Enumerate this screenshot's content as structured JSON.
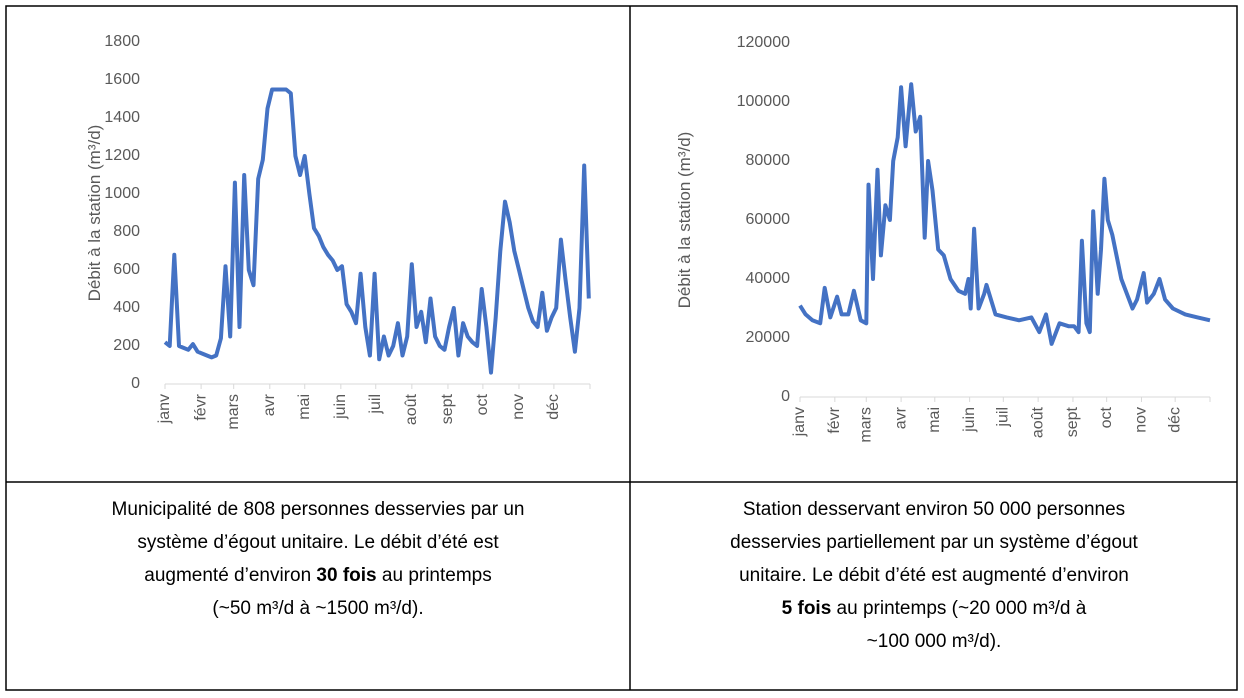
{
  "chart_data": [
    {
      "type": "line",
      "y_label": "Débit à la station (m³/d)",
      "color": "#4472c4",
      "xlim": [
        0,
        365
      ],
      "ylim": [
        0,
        1800
      ],
      "yticks": [
        0,
        200,
        400,
        600,
        800,
        1000,
        1200,
        1400,
        1600,
        1800
      ],
      "grid": false,
      "xticks": [
        {
          "value": 0,
          "label": "janv"
        },
        {
          "value": 31,
          "label": "févr"
        },
        {
          "value": 59,
          "label": "mars"
        },
        {
          "value": 90,
          "label": "avr"
        },
        {
          "value": 120,
          "label": "mai"
        },
        {
          "value": 151,
          "label": "juin"
        },
        {
          "value": 181,
          "label": "juil"
        },
        {
          "value": 212,
          "label": "août"
        },
        {
          "value": 243,
          "label": "sept"
        },
        {
          "value": 273,
          "label": "oct"
        },
        {
          "value": 304,
          "label": "nov"
        },
        {
          "value": 334,
          "label": "déc"
        }
      ],
      "x": [
        0,
        4,
        8,
        12,
        16,
        20,
        24,
        28,
        32,
        36,
        40,
        44,
        48,
        52,
        56,
        60,
        64,
        68,
        72,
        76,
        80,
        84,
        88,
        92,
        96,
        100,
        104,
        108,
        112,
        116,
        120,
        124,
        128,
        132,
        136,
        140,
        144,
        148,
        152,
        156,
        160,
        164,
        168,
        172,
        176,
        180,
        184,
        188,
        192,
        196,
        200,
        204,
        208,
        212,
        216,
        220,
        224,
        228,
        232,
        236,
        240,
        244,
        248,
        252,
        256,
        260,
        264,
        268,
        272,
        276,
        280,
        284,
        288,
        292,
        296,
        300,
        304,
        308,
        312,
        316,
        320,
        324,
        328,
        332,
        336,
        340,
        344,
        348,
        352,
        356,
        360,
        364
      ],
      "values": [
        220,
        200,
        680,
        200,
        190,
        180,
        210,
        170,
        160,
        150,
        140,
        150,
        240,
        620,
        250,
        1060,
        300,
        1100,
        600,
        520,
        1080,
        1180,
        1450,
        1550,
        1550,
        1550,
        1550,
        1530,
        1200,
        1100,
        1200,
        1000,
        820,
        780,
        720,
        680,
        650,
        600,
        620,
        420,
        380,
        320,
        580,
        300,
        150,
        580,
        130,
        250,
        150,
        200,
        320,
        150,
        250,
        630,
        300,
        380,
        220,
        450,
        250,
        200,
        180,
        300,
        400,
        150,
        320,
        250,
        220,
        200,
        500,
        300,
        60,
        350,
        700,
        960,
        850,
        700,
        600,
        500,
        400,
        330,
        300,
        480,
        280,
        350,
        400,
        760,
        550,
        350,
        170,
        400,
        1150,
        450
      ]
    },
    {
      "type": "line",
      "y_label": "Débit à la station (m³/d)",
      "color": "#4472c4",
      "xlim": [
        0,
        365
      ],
      "ylim": [
        0,
        120000
      ],
      "yticks": [
        0,
        20000,
        40000,
        60000,
        80000,
        100000,
        120000
      ],
      "grid": false,
      "xticks": [
        {
          "value": 0,
          "label": "janv"
        },
        {
          "value": 31,
          "label": "févr"
        },
        {
          "value": 59,
          "label": "mars"
        },
        {
          "value": 90,
          "label": "avr"
        },
        {
          "value": 120,
          "label": "mai"
        },
        {
          "value": 151,
          "label": "juin"
        },
        {
          "value": 181,
          "label": "juil"
        },
        {
          "value": 212,
          "label": "août"
        },
        {
          "value": 243,
          "label": "sept"
        },
        {
          "value": 273,
          "label": "oct"
        },
        {
          "value": 304,
          "label": "nov"
        },
        {
          "value": 334,
          "label": "déc"
        }
      ],
      "x": [
        0,
        5,
        11,
        18,
        22,
        27,
        33,
        37,
        43,
        48,
        54,
        59,
        61,
        65,
        69,
        72,
        76,
        80,
        83,
        87,
        90,
        94,
        99,
        103,
        107,
        111,
        114,
        118,
        123,
        128,
        134,
        141,
        147,
        150,
        152,
        155,
        159,
        164,
        166,
        174,
        184,
        195,
        206,
        213,
        219,
        224,
        231,
        239,
        244,
        248,
        251,
        255,
        258,
        261,
        265,
        268,
        271,
        274,
        278,
        286,
        291,
        296,
        300,
        306,
        309,
        315,
        320,
        325,
        332,
        343,
        354,
        365
      ],
      "values": [
        31000,
        28000,
        26000,
        25000,
        37000,
        27000,
        34000,
        28000,
        28000,
        36000,
        26000,
        25000,
        72000,
        40000,
        77000,
        48000,
        65000,
        60000,
        80000,
        88000,
        105000,
        85000,
        106000,
        90000,
        95000,
        54000,
        80000,
        70000,
        50000,
        48000,
        40000,
        36000,
        35000,
        40000,
        30000,
        57000,
        30000,
        35000,
        38000,
        28000,
        27000,
        26000,
        27000,
        22000,
        28000,
        18000,
        25000,
        24000,
        24000,
        22000,
        53000,
        25000,
        22000,
        63000,
        35000,
        50000,
        74000,
        60000,
        55000,
        40000,
        35000,
        30000,
        33000,
        42000,
        32000,
        35000,
        40000,
        33000,
        30000,
        28000,
        27000,
        26000
      ]
    }
  ],
  "captions": [
    [
      [
        {
          "text": "Municipalité de 808 personnes desservies par un",
          "bold": false
        }
      ],
      [
        {
          "text": "système d’égout unitaire. Le débit d’été est",
          "bold": false
        }
      ],
      [
        {
          "text": "augmenté d’environ ",
          "bold": false
        },
        {
          "text": "30 fois",
          "bold": true
        },
        {
          "text": " au printemps",
          "bold": false
        }
      ],
      [
        {
          "text": "(~50 m³/d à ~1500 m³/d).",
          "bold": false
        }
      ]
    ],
    [
      [
        {
          "text": "Station desservant environ 50 000 personnes",
          "bold": false
        }
      ],
      [
        {
          "text": "desservies partiellement par un système d’égout",
          "bold": false
        }
      ],
      [
        {
          "text": "unitaire. Le débit d’été est augmenté d’environ",
          "bold": false
        }
      ],
      [
        {
          "text": "5 fois",
          "bold": true
        },
        {
          "text": " au printemps (~20 000 m³/d à",
          "bold": false
        }
      ],
      [
        {
          "text": "~100 000 m³/d).",
          "bold": false
        }
      ]
    ]
  ]
}
